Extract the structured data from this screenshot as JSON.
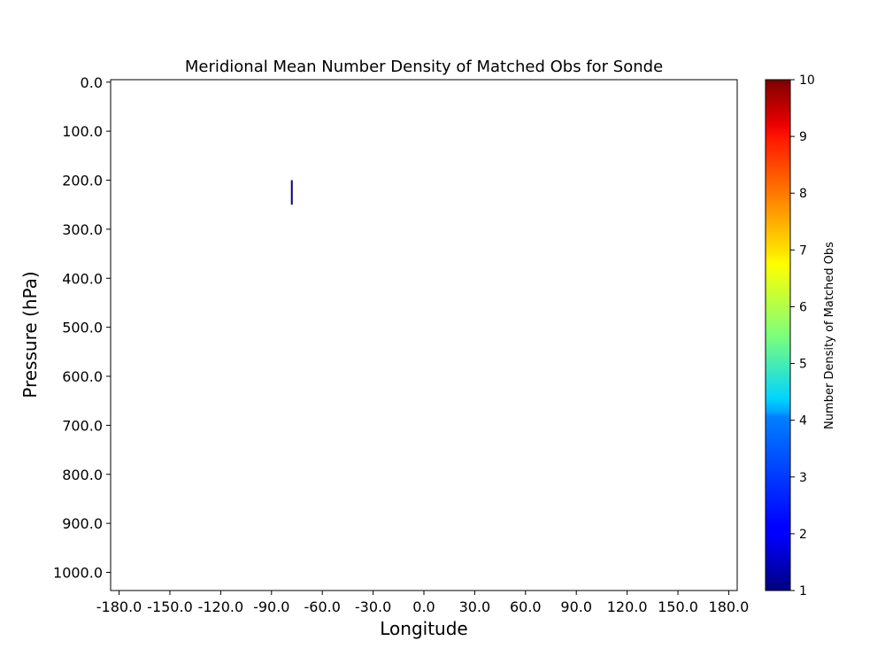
{
  "chart_data": {
    "type": "heatmap",
    "title": "Meridional Mean Number Density of Matched Obs for Sonde",
    "xlabel": "Longitude",
    "ylabel": "Pressure (hPa)",
    "xlim": [
      -185,
      185
    ],
    "ylim": [
      1037,
      -5
    ],
    "y_inverted": true,
    "grid": false,
    "x_ticks": [
      "-180.0",
      "-150.0",
      "-120.0",
      "-90.0",
      "-60.0",
      "-30.0",
      "0.0",
      "30.0",
      "60.0",
      "90.0",
      "120.0",
      "150.0",
      "180.0"
    ],
    "y_ticks": [
      "0.0",
      "100.0",
      "200.0",
      "300.0",
      "400.0",
      "500.0",
      "600.0",
      "700.0",
      "800.0",
      "900.0",
      "1000.0"
    ],
    "colorbar": {
      "label": "Number Density of Matched Obs",
      "colormap": "jet",
      "min": 1,
      "max": 10,
      "ticks": [
        "1",
        "2",
        "3",
        "4",
        "5",
        "6",
        "7",
        "8",
        "9",
        "10"
      ]
    },
    "cells": [
      {
        "lon": -78,
        "p_top": 200,
        "p_bottom": 250,
        "value": 1
      }
    ]
  }
}
